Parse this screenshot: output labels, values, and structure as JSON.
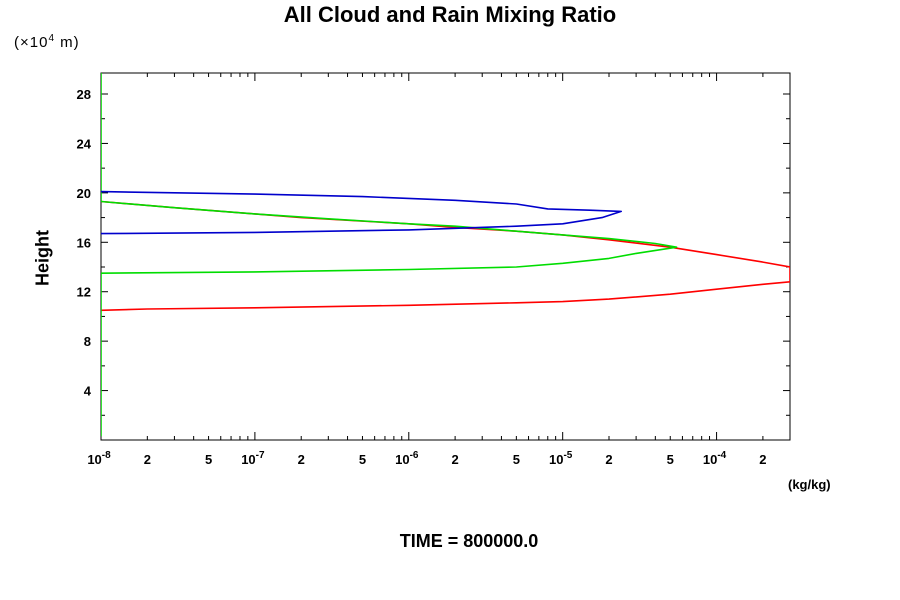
{
  "chart_data": {
    "type": "line",
    "title": "All Cloud and Rain Mixing Ratio",
    "ylabel": "Height",
    "yunit_prefix": "(×10",
    "yunit_exp": "4",
    "yunit_suffix": " m)",
    "xunit": "(kg/kg)",
    "footer": "TIME = 800000.0",
    "xscale": "log",
    "xlim": [
      1e-08,
      0.0003
    ],
    "ylim": [
      0,
      29.7
    ],
    "grid": false,
    "y_ticks": [
      4,
      8,
      12,
      16,
      20,
      24,
      28
    ],
    "y_tick_labels": [
      "4",
      "8",
      "12",
      "16",
      "20",
      "24",
      "28"
    ],
    "x_major_ticks": [
      {
        "value": 1e-08,
        "base": "10",
        "exp": "-8"
      },
      {
        "value": 1e-07,
        "base": "10",
        "exp": "-7"
      },
      {
        "value": 1e-06,
        "base": "10",
        "exp": "-6"
      },
      {
        "value": 1e-05,
        "base": "10",
        "exp": "-5"
      },
      {
        "value": 0.0001,
        "base": "10",
        "exp": "-4"
      }
    ],
    "x_minor_labeled": [
      {
        "value": 2e-08,
        "label": "2"
      },
      {
        "value": 5e-08,
        "label": "5"
      },
      {
        "value": 2e-07,
        "label": "2"
      },
      {
        "value": 5e-07,
        "label": "5"
      },
      {
        "value": 2e-06,
        "label": "2"
      },
      {
        "value": 5e-06,
        "label": "5"
      },
      {
        "value": 2e-05,
        "label": "2"
      },
      {
        "value": 5e-05,
        "label": "5"
      },
      {
        "value": 0.0002,
        "label": "2"
      }
    ],
    "series": [
      {
        "color": "#ff0000",
        "points": [
          [
            1e-08,
            10.5
          ],
          [
            2e-08,
            10.6
          ],
          [
            1e-07,
            10.7
          ],
          [
            1e-06,
            10.9
          ],
          [
            5e-06,
            11.1
          ],
          [
            1e-05,
            11.2
          ],
          [
            2e-05,
            11.4
          ],
          [
            5e-05,
            11.8
          ],
          [
            0.0001,
            12.2
          ],
          [
            0.0002,
            12.6
          ],
          [
            0.0003,
            12.8
          ],
          [
            0.0003,
            14.0
          ],
          [
            0.0002,
            14.4
          ],
          [
            0.0001,
            15.0
          ],
          [
            5e-05,
            15.6
          ],
          [
            2e-05,
            16.2
          ],
          [
            1e-05,
            16.6
          ],
          [
            5e-06,
            16.9
          ],
          [
            2e-06,
            17.2
          ],
          [
            1e-06,
            17.5
          ],
          [
            2e-07,
            18.0
          ],
          [
            1e-07,
            18.3
          ],
          [
            3e-08,
            18.8
          ],
          [
            1e-08,
            19.3
          ]
        ]
      },
      {
        "color": "#00dd00",
        "points": [
          [
            1e-08,
            0.3
          ],
          [
            1e-08,
            13.5
          ],
          [
            1e-07,
            13.6
          ],
          [
            1e-06,
            13.8
          ],
          [
            5e-06,
            14.0
          ],
          [
            1e-05,
            14.3
          ],
          [
            2e-05,
            14.7
          ],
          [
            3e-05,
            15.1
          ],
          [
            5.5e-05,
            15.6
          ],
          [
            4e-05,
            15.9
          ],
          [
            2e-05,
            16.3
          ],
          [
            1e-05,
            16.6
          ],
          [
            5e-06,
            16.9
          ],
          [
            2e-06,
            17.3
          ],
          [
            1e-06,
            17.5
          ],
          [
            3e-07,
            17.9
          ],
          [
            1e-07,
            18.3
          ],
          [
            3e-08,
            18.8
          ],
          [
            1e-08,
            19.3
          ],
          [
            1e-08,
            29.7
          ]
        ]
      },
      {
        "color": "#0000cc",
        "points": [
          [
            1e-08,
            16.7
          ],
          [
            1e-07,
            16.8
          ],
          [
            1e-06,
            17.0
          ],
          [
            5e-06,
            17.3
          ],
          [
            1e-05,
            17.5
          ],
          [
            1.8e-05,
            18.0
          ],
          [
            2.4e-05,
            18.5
          ],
          [
            1.5e-05,
            18.6
          ],
          [
            8e-06,
            18.7
          ],
          [
            5e-06,
            19.1
          ],
          [
            2e-06,
            19.4
          ],
          [
            5e-07,
            19.7
          ],
          [
            1e-07,
            19.9
          ],
          [
            1e-08,
            20.1
          ]
        ]
      }
    ]
  }
}
